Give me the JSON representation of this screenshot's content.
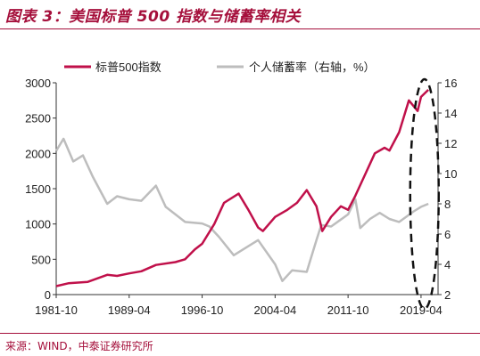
{
  "figure": {
    "title": "图表 3：美国标普 500 指数与储蓄率相关",
    "source": "来源：WIND，中泰证券研究所"
  },
  "colors": {
    "accent": "#a50f3b",
    "sp500": "#c0104a",
    "saving": "#bdbdbd",
    "axis": "#333333"
  },
  "chart_data": {
    "type": "line",
    "x_tick_labels": [
      "1981-10",
      "1989-04",
      "1996-10",
      "2004-04",
      "2011-10",
      "2019-04"
    ],
    "x_ticks": [
      1981.75,
      1989.25,
      1996.75,
      2004.25,
      2011.75,
      2019.25
    ],
    "xlim": [
      1981.75,
      2021.0
    ],
    "y_left": {
      "lim": [
        0,
        3000
      ],
      "ticks": [
        0,
        500,
        1000,
        1500,
        2000,
        2500,
        3000
      ]
    },
    "y_right": {
      "lim": [
        2,
        16
      ],
      "ticks": [
        2,
        4,
        6,
        8,
        10,
        12,
        14,
        16
      ]
    },
    "legend_position": "top",
    "annotation": "dashed-ellipse-2019-2020",
    "series": [
      {
        "name": "标普500指数",
        "axis": "left",
        "points": [
          [
            1981.75,
            120
          ],
          [
            1983,
            160
          ],
          [
            1985,
            180
          ],
          [
            1987,
            280
          ],
          [
            1988,
            265
          ],
          [
            1989.25,
            300
          ],
          [
            1990.5,
            330
          ],
          [
            1992,
            420
          ],
          [
            1994,
            460
          ],
          [
            1995,
            500
          ],
          [
            1996,
            640
          ],
          [
            1996.75,
            720
          ],
          [
            1998,
            1000
          ],
          [
            1999,
            1300
          ],
          [
            2000.5,
            1430
          ],
          [
            2001.5,
            1200
          ],
          [
            2002.5,
            950
          ],
          [
            2003,
            900
          ],
          [
            2004.25,
            1100
          ],
          [
            2005.5,
            1200
          ],
          [
            2006.5,
            1300
          ],
          [
            2007.5,
            1480
          ],
          [
            2008.5,
            1250
          ],
          [
            2009.1,
            900
          ],
          [
            2010,
            1100
          ],
          [
            2011,
            1250
          ],
          [
            2011.75,
            1200
          ],
          [
            2012.5,
            1400
          ],
          [
            2013.5,
            1700
          ],
          [
            2014.5,
            2000
          ],
          [
            2015.5,
            2080
          ],
          [
            2016,
            2040
          ],
          [
            2017,
            2300
          ],
          [
            2018,
            2750
          ],
          [
            2018.9,
            2600
          ],
          [
            2019.25,
            2800
          ],
          [
            2020,
            2900
          ]
        ]
      },
      {
        "name": "个人储蓄率（右轴，%）",
        "axis": "right",
        "points": [
          [
            1981.75,
            11.5
          ],
          [
            1982.5,
            12.3
          ],
          [
            1983.5,
            10.8
          ],
          [
            1984.5,
            11.2
          ],
          [
            1985.5,
            9.8
          ],
          [
            1987,
            8.0
          ],
          [
            1988,
            8.5
          ],
          [
            1989.25,
            8.3
          ],
          [
            1990.5,
            8.2
          ],
          [
            1992,
            9.2
          ],
          [
            1993,
            7.8
          ],
          [
            1995,
            6.8
          ],
          [
            1996.75,
            6.7
          ],
          [
            1997.5,
            6.5
          ],
          [
            1998.5,
            5.8
          ],
          [
            2000,
            4.6
          ],
          [
            2001.5,
            5.2
          ],
          [
            2002.5,
            5.6
          ],
          [
            2004.25,
            4.0
          ],
          [
            2005,
            2.9
          ],
          [
            2006,
            3.6
          ],
          [
            2007.5,
            3.5
          ],
          [
            2008.5,
            5.6
          ],
          [
            2009,
            6.6
          ],
          [
            2010,
            6.5
          ],
          [
            2011.75,
            7.3
          ],
          [
            2012.5,
            8.3
          ],
          [
            2013,
            6.4
          ],
          [
            2014,
            7.0
          ],
          [
            2015,
            7.4
          ],
          [
            2016,
            7.0
          ],
          [
            2017,
            6.8
          ],
          [
            2018.5,
            7.5
          ],
          [
            2019.25,
            7.8
          ],
          [
            2020,
            8.0
          ]
        ]
      }
    ]
  }
}
